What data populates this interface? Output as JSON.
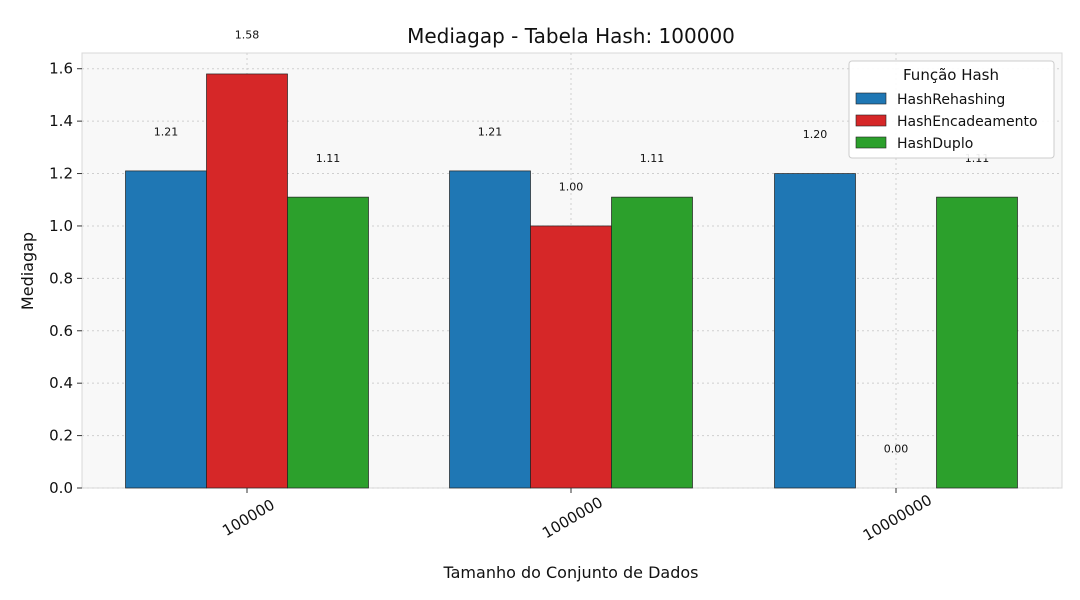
{
  "chart_data": {
    "type": "bar",
    "title": "Mediagap - Tabela Hash: 100000",
    "xlabel": "Tamanho do Conjunto de Dados",
    "ylabel": "Mediagap",
    "categories": [
      "100000",
      "1000000",
      "10000000"
    ],
    "ylim": [
      0,
      1.66
    ],
    "yticks": [
      0.0,
      0.2,
      0.4,
      0.6,
      0.8,
      1.0,
      1.2,
      1.4,
      1.6
    ],
    "ytick_labels": [
      "0.0",
      "0.2",
      "0.4",
      "0.6",
      "0.8",
      "1.0",
      "1.2",
      "1.4",
      "1.6"
    ],
    "grid": true,
    "legend": {
      "title": "Função Hash",
      "placement": "top-right"
    },
    "series": [
      {
        "name": "HashRehashing",
        "color": "#1f77b4",
        "values": [
          1.21,
          1.21,
          1.2
        ],
        "labels": [
          "1.21",
          "1.21",
          "1.20"
        ]
      },
      {
        "name": "HashEncadeamento",
        "color": "#d62728",
        "values": [
          1.58,
          1.0,
          0.0
        ],
        "labels": [
          "1.58",
          "1.00",
          "0.00"
        ]
      },
      {
        "name": "HashDuplo",
        "color": "#2ca02c",
        "values": [
          1.11,
          1.11,
          1.11
        ],
        "labels": [
          "1.11",
          "1.11",
          "1.11"
        ]
      }
    ]
  }
}
